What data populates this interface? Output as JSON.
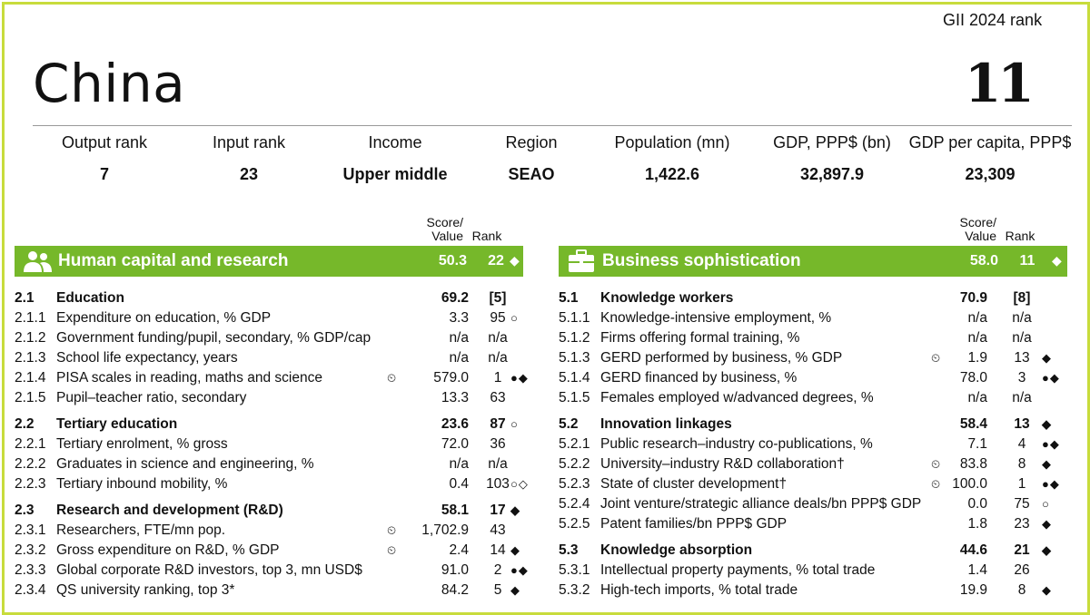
{
  "header": {
    "country": "China",
    "gii_label": "GII 2024 rank",
    "gii_rank": "11"
  },
  "stats": [
    {
      "label": "Output rank",
      "value": "7"
    },
    {
      "label": "Input rank",
      "value": "23"
    },
    {
      "label": "Income",
      "value": "Upper middle"
    },
    {
      "label": "Region",
      "value": "SEAO"
    },
    {
      "label": "Population (mn)",
      "value": "1,422.6"
    },
    {
      "label": "GDP, PPP$ (bn)",
      "value": "32,897.9"
    },
    {
      "label": "GDP per capita, PPP$",
      "value": "23,309"
    }
  ],
  "column_headers": {
    "score_line1": "Score/",
    "score_line2": "Value",
    "rank": "Rank"
  },
  "left": {
    "pillar": {
      "title": "Human capital and research",
      "score": "50.3",
      "rank": "22",
      "mark": "◆",
      "icon": "people-icon"
    },
    "rows": [
      {
        "code": "2.1",
        "name": "Education",
        "score": "69.2",
        "rank": "[5]",
        "marks": "",
        "clock": false,
        "bold": true
      },
      {
        "code": "2.1.1",
        "name": "Expenditure on education, % GDP",
        "score": "3.3",
        "rank": "95",
        "marks": "○",
        "clock": false,
        "bold": false
      },
      {
        "code": "2.1.2",
        "name": "Government funding/pupil, secondary, % GDP/cap",
        "score": "n/a",
        "rank": "n/a",
        "marks": "",
        "clock": false,
        "bold": false
      },
      {
        "code": "2.1.3",
        "name": "School life expectancy, years",
        "score": "n/a",
        "rank": "n/a",
        "marks": "",
        "clock": false,
        "bold": false
      },
      {
        "code": "2.1.4",
        "name": "PISA scales in reading, maths and science",
        "score": "579.0",
        "rank": "1",
        "marks": "●◆",
        "clock": true,
        "bold": false
      },
      {
        "code": "2.1.5",
        "name": "Pupil–teacher ratio, secondary",
        "score": "13.3",
        "rank": "63",
        "marks": "",
        "clock": false,
        "bold": false
      },
      {
        "code": "2.2",
        "name": "Tertiary education",
        "score": "23.6",
        "rank": "87",
        "marks": "○",
        "clock": false,
        "bold": true
      },
      {
        "code": "2.2.1",
        "name": "Tertiary enrolment, % gross",
        "score": "72.0",
        "rank": "36",
        "marks": "",
        "clock": false,
        "bold": false
      },
      {
        "code": "2.2.2",
        "name": "Graduates in science and engineering, %",
        "score": "n/a",
        "rank": "n/a",
        "marks": "",
        "clock": false,
        "bold": false
      },
      {
        "code": "2.2.3",
        "name": "Tertiary inbound mobility, %",
        "score": "0.4",
        "rank": "103",
        "marks": "○◇",
        "clock": false,
        "bold": false
      },
      {
        "code": "2.3",
        "name": "Research and development (R&D)",
        "score": "58.1",
        "rank": "17",
        "marks": "◆",
        "clock": false,
        "bold": true
      },
      {
        "code": "2.3.1",
        "name": "Researchers, FTE/mn pop.",
        "score": "1,702.9",
        "rank": "43",
        "marks": "",
        "clock": true,
        "bold": false
      },
      {
        "code": "2.3.2",
        "name": "Gross expenditure on R&D, % GDP",
        "score": "2.4",
        "rank": "14",
        "marks": "◆",
        "clock": true,
        "bold": false
      },
      {
        "code": "2.3.3",
        "name": "Global corporate R&D investors, top 3, mn USD$",
        "score": "91.0",
        "rank": "2",
        "marks": "●◆",
        "clock": false,
        "bold": false
      },
      {
        "code": "2.3.4",
        "name": "QS university ranking, top 3*",
        "score": "84.2",
        "rank": "5",
        "marks": "◆",
        "clock": false,
        "bold": false
      }
    ]
  },
  "right": {
    "pillar": {
      "title": "Business sophistication",
      "score": "58.0",
      "rank": "11",
      "mark": "◆",
      "icon": "briefcase-icon"
    },
    "rows": [
      {
        "code": "5.1",
        "name": "Knowledge workers",
        "score": "70.9",
        "rank": "[8]",
        "marks": "",
        "clock": false,
        "bold": true
      },
      {
        "code": "5.1.1",
        "name": "Knowledge-intensive employment, %",
        "score": "n/a",
        "rank": "n/a",
        "marks": "",
        "clock": false,
        "bold": false
      },
      {
        "code": "5.1.2",
        "name": "Firms offering formal training, %",
        "score": "n/a",
        "rank": "n/a",
        "marks": "",
        "clock": false,
        "bold": false
      },
      {
        "code": "5.1.3",
        "name": "GERD performed by business, % GDP",
        "score": "1.9",
        "rank": "13",
        "marks": "◆",
        "clock": true,
        "bold": false
      },
      {
        "code": "5.1.4",
        "name": "GERD financed by business, %",
        "score": "78.0",
        "rank": "3",
        "marks": "●◆",
        "clock": false,
        "bold": false
      },
      {
        "code": "5.1.5",
        "name": "Females employed w/advanced degrees, %",
        "score": "n/a",
        "rank": "n/a",
        "marks": "",
        "clock": false,
        "bold": false
      },
      {
        "code": "5.2",
        "name": "Innovation linkages",
        "score": "58.4",
        "rank": "13",
        "marks": "◆",
        "clock": false,
        "bold": true
      },
      {
        "code": "5.2.1",
        "name": "Public research–industry co-publications, %",
        "score": "7.1",
        "rank": "4",
        "marks": "●◆",
        "clock": false,
        "bold": false
      },
      {
        "code": "5.2.2",
        "name": "University–industry R&D collaboration†",
        "score": "83.8",
        "rank": "8",
        "marks": "◆",
        "clock": true,
        "bold": false
      },
      {
        "code": "5.2.3",
        "name": "State of cluster development†",
        "score": "100.0",
        "rank": "1",
        "marks": "●◆",
        "clock": true,
        "bold": false
      },
      {
        "code": "5.2.4",
        "name": "Joint venture/strategic alliance deals/bn PPP$ GDP",
        "score": "0.0",
        "rank": "75",
        "marks": "○",
        "clock": false,
        "bold": false
      },
      {
        "code": "5.2.5",
        "name": "Patent families/bn PPP$ GDP",
        "score": "1.8",
        "rank": "23",
        "marks": "◆",
        "clock": false,
        "bold": false
      },
      {
        "code": "5.3",
        "name": "Knowledge absorption",
        "score": "44.6",
        "rank": "21",
        "marks": "◆",
        "clock": false,
        "bold": true
      },
      {
        "code": "5.3.1",
        "name": "Intellectual property payments, % total trade",
        "score": "1.4",
        "rank": "26",
        "marks": "",
        "clock": false,
        "bold": false
      },
      {
        "code": "5.3.2",
        "name": "High-tech imports, % total trade",
        "score": "19.9",
        "rank": "8",
        "marks": "◆",
        "clock": false,
        "bold": false
      }
    ]
  },
  "clock_glyph": "⏲"
}
